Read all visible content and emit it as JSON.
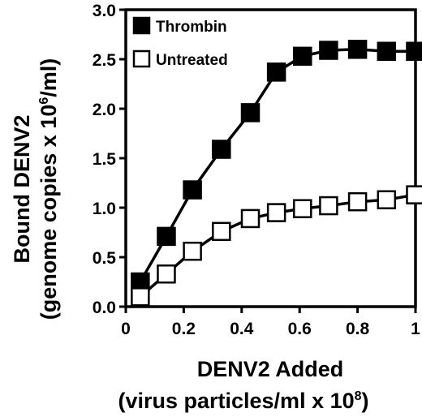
{
  "chart_data": {
    "type": "line",
    "title": "",
    "ylabel_line1": "Bound DENV2",
    "ylabel_line2_prefix": "(genome copies x 10",
    "ylabel_line2_sup": "6",
    "ylabel_line2_suffix": "/ml)",
    "xlabel_line1": "DENV2 Added",
    "xlabel_line2_prefix": "(virus particles/ml x 10",
    "xlabel_line2_sup": "8",
    "xlabel_line2_suffix": ")",
    "xlim": [
      0,
      1
    ],
    "ylim": [
      0,
      3
    ],
    "xticks": [
      0,
      0.2,
      0.4,
      0.6,
      0.8,
      1
    ],
    "xtick_labels": [
      "0",
      "0.2",
      "0.4",
      "0.6",
      "0.8",
      "1"
    ],
    "yticks": [
      0,
      0.5,
      1,
      1.5,
      2,
      2.5,
      3
    ],
    "ytick_labels": [
      "0.0",
      "0.5",
      "1.0",
      "1.5",
      "2.0",
      "2.5",
      "3.0"
    ],
    "grid": false,
    "legend_position": "top-left",
    "series": [
      {
        "name": "Thrombin",
        "marker": "filled-square",
        "color": "#000000",
        "x": [
          0.05,
          0.14,
          0.23,
          0.33,
          0.43,
          0.52,
          0.61,
          0.7,
          0.8,
          0.9,
          1.0
        ],
        "y": [
          0.25,
          0.71,
          1.18,
          1.59,
          1.96,
          2.37,
          2.53,
          2.59,
          2.6,
          2.58,
          2.58
        ]
      },
      {
        "name": "Untreated",
        "marker": "open-square",
        "color": "#000000",
        "x": [
          0.05,
          0.14,
          0.23,
          0.33,
          0.43,
          0.52,
          0.61,
          0.7,
          0.8,
          0.9,
          1.0
        ],
        "y": [
          0.1,
          0.33,
          0.56,
          0.76,
          0.89,
          0.95,
          0.99,
          1.02,
          1.06,
          1.08,
          1.13
        ]
      }
    ]
  }
}
